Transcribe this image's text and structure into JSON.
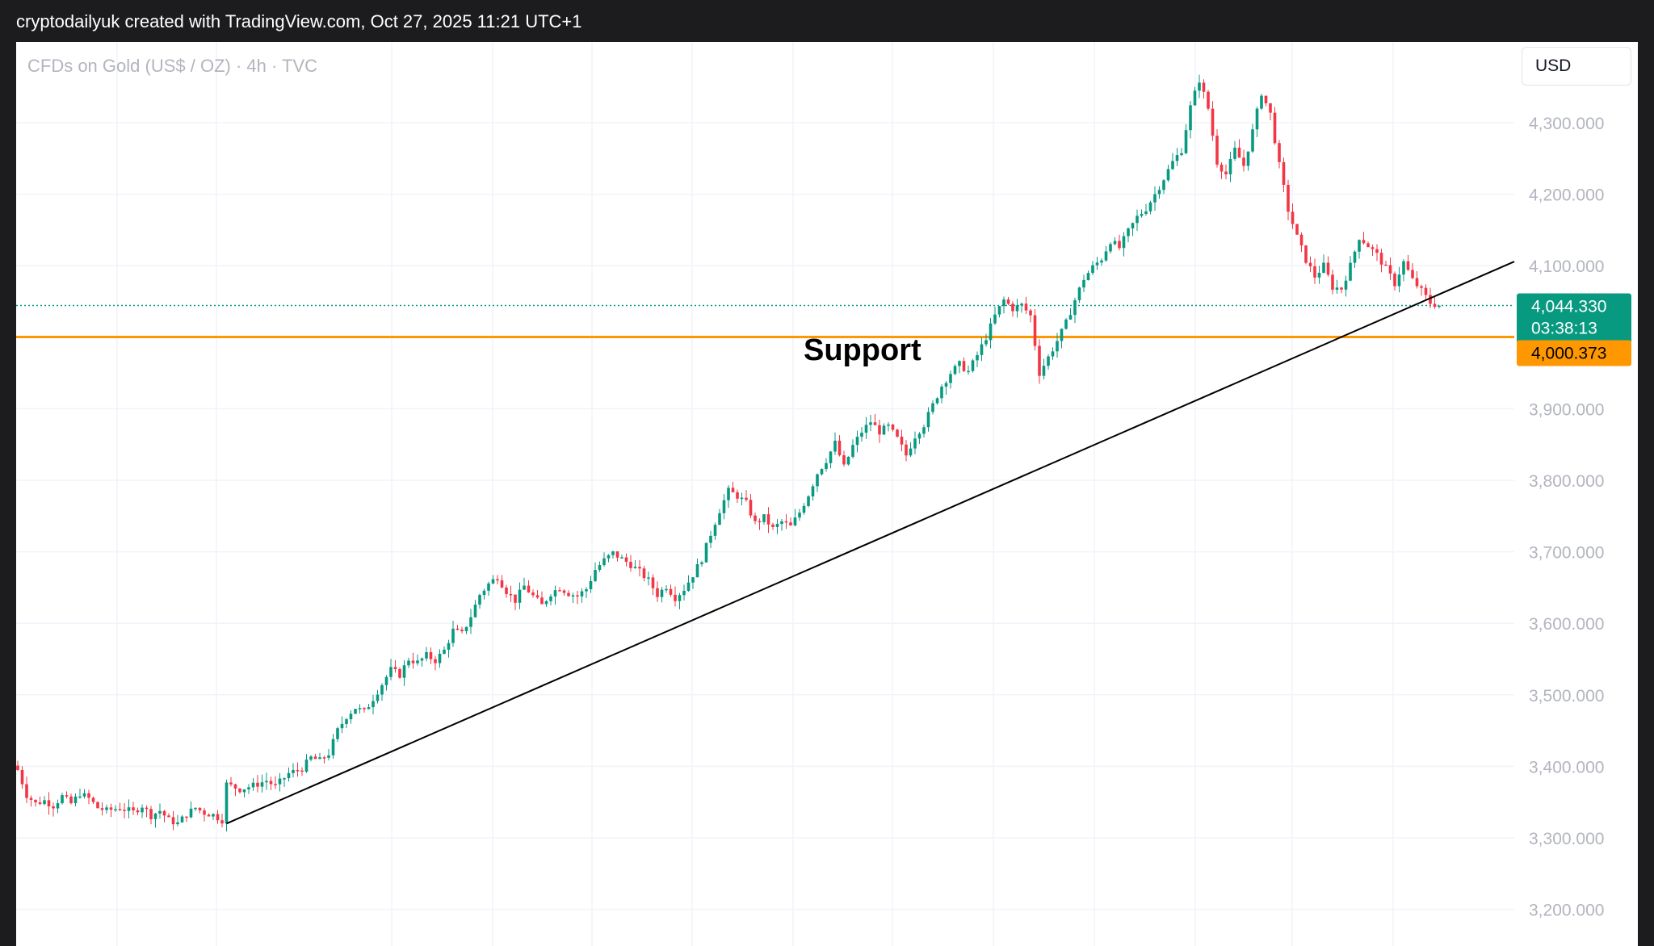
{
  "caption": "cryptodailyuk created with TradingView.com, Oct 27, 2025 11:21 UTC+1",
  "symbol_title": "CFDs on Gold (US$ / OZ) · 4h · TVC",
  "currency": "USD",
  "chart_data": {
    "type": "candlestick",
    "title": "CFDs on Gold (US$ / OZ) · 4h · TVC",
    "y_axis": {
      "side": "right",
      "ticks": [
        "4,300.000",
        "4,200.000",
        "4,100.000",
        "3,900.000",
        "3,800.000",
        "3,700.000",
        "3,600.000",
        "3,500.000",
        "3,400.000",
        "3,300.000",
        "3,200.000"
      ],
      "tick_values": [
        4300,
        4200,
        4100,
        3900,
        3800,
        3700,
        3600,
        3500,
        3400,
        3300,
        3200
      ],
      "range": [
        3144,
        4443
      ]
    },
    "x_axis": {
      "labels": []
    },
    "grid": true,
    "colors": {
      "up": "#089981",
      "down": "#f23645",
      "support": "#ff9800",
      "trendline": "#000000",
      "price_tag": "#089981"
    },
    "close_path": [
      [
        0,
        3395
      ],
      [
        2,
        3360
      ],
      [
        4,
        3348
      ],
      [
        6,
        3352
      ],
      [
        8,
        3345
      ],
      [
        10,
        3358
      ],
      [
        12,
        3348
      ],
      [
        14,
        3362
      ],
      [
        16,
        3355
      ],
      [
        18,
        3342
      ],
      [
        20,
        3338
      ],
      [
        23,
        3342
      ],
      [
        26,
        3336
      ],
      [
        28,
        3345
      ],
      [
        30,
        3331
      ],
      [
        32,
        3338
      ],
      [
        34,
        3325
      ],
      [
        36,
        3320
      ],
      [
        38,
        3333
      ],
      [
        40,
        3342
      ],
      [
        42,
        3335
      ],
      [
        44,
        3332
      ],
      [
        46,
        3325
      ],
      [
        47,
        3375
      ],
      [
        50,
        3368
      ],
      [
        53,
        3373
      ],
      [
        56,
        3380
      ],
      [
        58,
        3372
      ],
      [
        61,
        3390
      ],
      [
        64,
        3397
      ],
      [
        66,
        3412
      ],
      [
        68,
        3408
      ],
      [
        70,
        3418
      ],
      [
        72,
        3450
      ],
      [
        74,
        3470
      ],
      [
        76,
        3482
      ],
      [
        78,
        3476
      ],
      [
        80,
        3495
      ],
      [
        82,
        3515
      ],
      [
        84,
        3535
      ],
      [
        86,
        3528
      ],
      [
        88,
        3550
      ],
      [
        90,
        3545
      ],
      [
        92,
        3555
      ],
      [
        94,
        3548
      ],
      [
        96,
        3562
      ],
      [
        98,
        3590
      ],
      [
        100,
        3585
      ],
      [
        102,
        3610
      ],
      [
        104,
        3640
      ],
      [
        106,
        3655
      ],
      [
        108,
        3665
      ],
      [
        110,
        3645
      ],
      [
        112,
        3632
      ],
      [
        114,
        3652
      ],
      [
        116,
        3638
      ],
      [
        118,
        3625
      ],
      [
        120,
        3642
      ],
      [
        122,
        3650
      ],
      [
        124,
        3642
      ],
      [
        126,
        3638
      ],
      [
        128,
        3648
      ],
      [
        130,
        3675
      ],
      [
        132,
        3688
      ],
      [
        134,
        3698
      ],
      [
        136,
        3690
      ],
      [
        138,
        3682
      ],
      [
        140,
        3672
      ],
      [
        142,
        3660
      ],
      [
        144,
        3640
      ],
      [
        146,
        3652
      ],
      [
        148,
        3636
      ],
      [
        150,
        3648
      ],
      [
        152,
        3668
      ],
      [
        154,
        3690
      ],
      [
        156,
        3725
      ],
      [
        158,
        3758
      ],
      [
        160,
        3785
      ],
      [
        162,
        3778
      ],
      [
        164,
        3768
      ],
      [
        166,
        3740
      ],
      [
        168,
        3748
      ],
      [
        170,
        3732
      ],
      [
        172,
        3742
      ],
      [
        174,
        3735
      ],
      [
        176,
        3755
      ],
      [
        178,
        3780
      ],
      [
        180,
        3810
      ],
      [
        182,
        3828
      ],
      [
        184,
        3852
      ],
      [
        186,
        3818
      ],
      [
        188,
        3848
      ],
      [
        190,
        3868
      ],
      [
        192,
        3882
      ],
      [
        194,
        3868
      ],
      [
        196,
        3875
      ],
      [
        198,
        3858
      ],
      [
        200,
        3835
      ],
      [
        202,
        3862
      ],
      [
        204,
        3878
      ],
      [
        206,
        3905
      ],
      [
        208,
        3932
      ],
      [
        210,
        3950
      ],
      [
        212,
        3962
      ],
      [
        214,
        3952
      ],
      [
        216,
        3975
      ],
      [
        218,
        4000
      ],
      [
        220,
        4030
      ],
      [
        222,
        4052
      ],
      [
        224,
        4040
      ],
      [
        226,
        4045
      ],
      [
        228,
        4030
      ],
      [
        230,
        3950
      ],
      [
        232,
        3972
      ],
      [
        234,
        3995
      ],
      [
        236,
        4020
      ],
      [
        238,
        4052
      ],
      [
        240,
        4082
      ],
      [
        242,
        4098
      ],
      [
        244,
        4110
      ],
      [
        246,
        4135
      ],
      [
        248,
        4125
      ],
      [
        250,
        4148
      ],
      [
        252,
        4168
      ],
      [
        254,
        4180
      ],
      [
        256,
        4200
      ],
      [
        258,
        4222
      ],
      [
        260,
        4245
      ],
      [
        262,
        4262
      ],
      [
        264,
        4322
      ],
      [
        266,
        4360
      ],
      [
        268,
        4320
      ],
      [
        270,
        4245
      ],
      [
        272,
        4228
      ],
      [
        274,
        4262
      ],
      [
        276,
        4240
      ],
      [
        278,
        4288
      ],
      [
        280,
        4342
      ],
      [
        282,
        4312
      ],
      [
        284,
        4240
      ],
      [
        286,
        4178
      ],
      [
        288,
        4140
      ],
      [
        290,
        4108
      ],
      [
        292,
        4085
      ],
      [
        294,
        4100
      ],
      [
        296,
        4070
      ],
      [
        298,
        4068
      ],
      [
        300,
        4100
      ],
      [
        302,
        4140
      ],
      [
        304,
        4128
      ],
      [
        306,
        4115
      ],
      [
        308,
        4096
      ],
      [
        310,
        4075
      ],
      [
        312,
        4105
      ],
      [
        314,
        4080
      ],
      [
        316,
        4065
      ],
      [
        318,
        4048
      ],
      [
        320,
        4044.33
      ]
    ],
    "last_price": {
      "value": 4044.33,
      "label": "4,044.330",
      "countdown": "03:38:13"
    },
    "support": {
      "value": 4000.373,
      "label": "4,000.373",
      "annotation": "Support"
    },
    "trendline": {
      "start": {
        "bar": 47,
        "price": 3320
      },
      "end": {
        "bar": 320,
        "price": 4060
      },
      "extends_right": true
    }
  }
}
